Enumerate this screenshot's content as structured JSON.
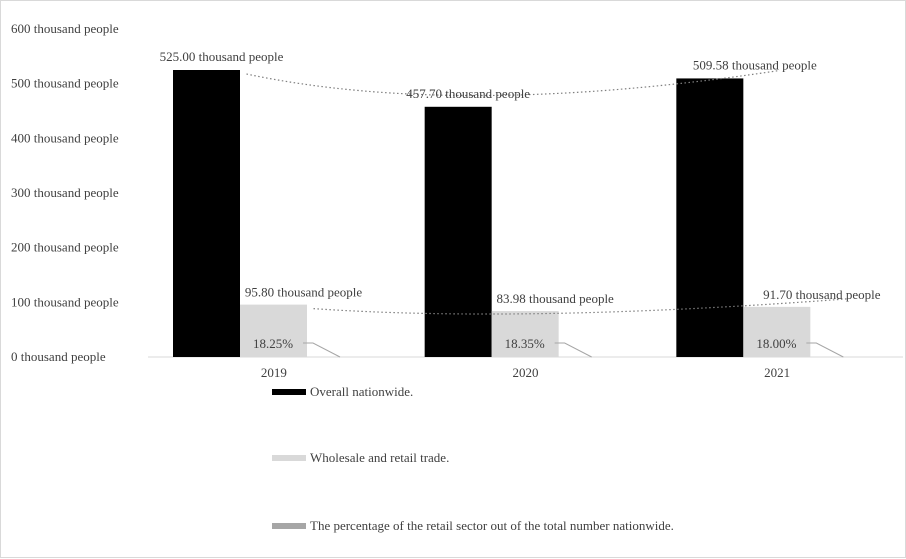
{
  "chart_data": {
    "type": "bar",
    "categories": [
      "2019",
      "2020",
      "2021"
    ],
    "ylim": [
      0,
      600
    ],
    "yticks": [
      "0  thousand people",
      "100  thousand people",
      "200  thousand people",
      "300  thousand people",
      "400  thousand people",
      "500  thousand people",
      "600  thousand people"
    ],
    "grid": false,
    "legend_position": "bottom-left",
    "series": [
      {
        "name": "Overall nationwide.",
        "color": "#000000",
        "values": [
          525.0,
          457.7,
          509.58
        ],
        "labels": [
          "525.00  thousand people",
          "457.70  thousand people",
          "509.58  thousand people"
        ]
      },
      {
        "name": "Wholesale and retail trade.",
        "color": "#d9d9d9",
        "values": [
          95.8,
          83.98,
          91.7
        ],
        "labels": [
          "95.80  thousand people",
          "83.98  thousand people",
          "91.70  thousand people"
        ]
      },
      {
        "name": "The percentage of the retail sector out of the total number nationwide.",
        "color": "#a6a6a6",
        "values": [
          18.25,
          18.35,
          18.0
        ],
        "labels": [
          "18.25%",
          "18.35%",
          "18.00%"
        ]
      }
    ]
  }
}
